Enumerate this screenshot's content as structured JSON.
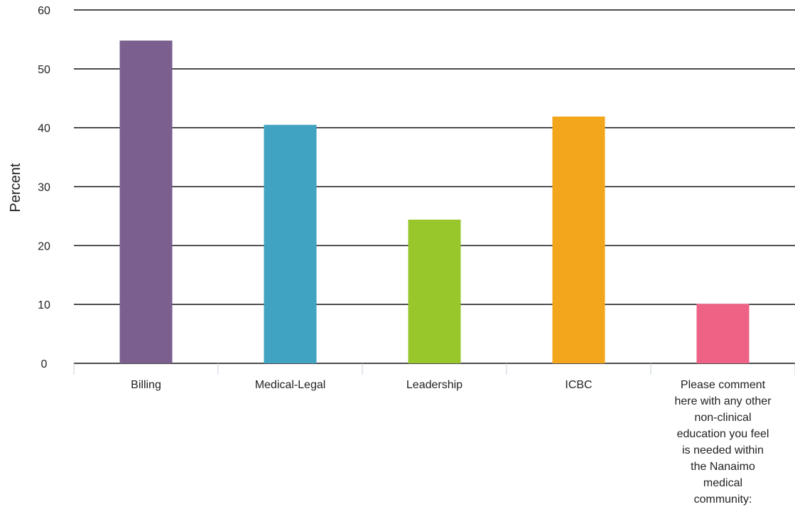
{
  "chart_data": {
    "type": "bar",
    "title": "",
    "xlabel": "",
    "ylabel": "Percent",
    "ylim": [
      0,
      60
    ],
    "yticks": [
      0,
      10,
      20,
      30,
      40,
      50,
      60
    ],
    "grid": true,
    "legend": "none",
    "categories": [
      "Billing",
      "Medical-Legal",
      "Leadership",
      "ICBC",
      "Please comment here with any other non-clinical education you feel is needed within the Nanaimo medical community:"
    ],
    "category_label_lines": [
      [
        "Billing"
      ],
      [
        "Medical-Legal"
      ],
      [
        "Leadership"
      ],
      [
        "ICBC"
      ],
      [
        "Please comment",
        "here with any other",
        "non-clinical",
        "education you feel",
        "is needed within",
        "the Nanaimo",
        "medical",
        "community:"
      ]
    ],
    "values": [
      54.8,
      40.5,
      24.4,
      41.9,
      10.1
    ],
    "colors": [
      "#7b5f8e",
      "#3fa3c1",
      "#97c72a",
      "#f3a51b",
      "#ee6286"
    ]
  }
}
